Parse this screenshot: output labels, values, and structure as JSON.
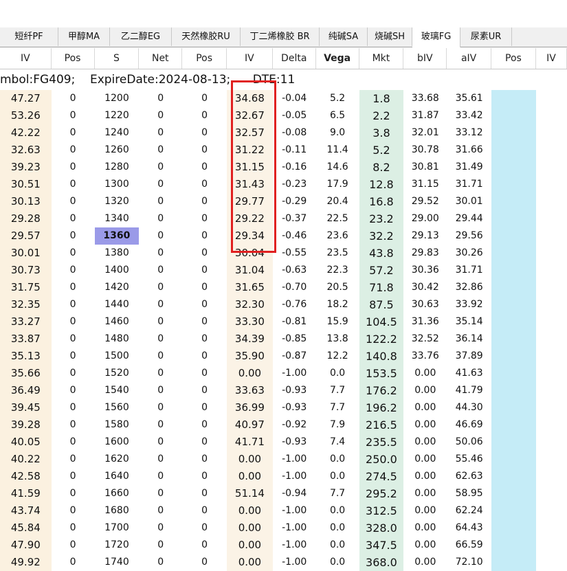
{
  "tabs": [
    {
      "label": "短纤PF",
      "active": false
    },
    {
      "label": "甲醇MA",
      "active": false
    },
    {
      "label": "乙二醇EG",
      "active": false
    },
    {
      "label": "天然橡胶RU",
      "active": false
    },
    {
      "label": "丁二烯橡胶 BR",
      "active": false
    },
    {
      "label": "纯碱SA",
      "active": false
    },
    {
      "label": "烧碱SH",
      "active": false
    },
    {
      "label": "玻璃FG",
      "active": true
    },
    {
      "label": "尿素UR",
      "active": false
    }
  ],
  "columns": [
    "IV",
    "Pos",
    "S",
    "Net",
    "Pos",
    "IV",
    "Delta",
    "Vega",
    "Mkt",
    "bIV",
    "aIV",
    "Pos",
    "IV"
  ],
  "info": {
    "symbol": "mbol:FG409;",
    "expire": "ExpireDate:2024-08-13;",
    "dte": "DTE:11"
  },
  "atm_strike": "1360",
  "highlight_color": "#e02020",
  "rows": [
    [
      "47.27",
      "0",
      "1200",
      "0",
      "0",
      "34.68",
      "-0.04",
      "5.2",
      "1.8",
      "33.68",
      "35.61"
    ],
    [
      "53.26",
      "0",
      "1220",
      "0",
      "0",
      "32.67",
      "-0.05",
      "6.5",
      "2.2",
      "31.87",
      "33.42"
    ],
    [
      "42.22",
      "0",
      "1240",
      "0",
      "0",
      "32.57",
      "-0.08",
      "9.0",
      "3.8",
      "32.01",
      "33.12"
    ],
    [
      "32.63",
      "0",
      "1260",
      "0",
      "0",
      "31.22",
      "-0.11",
      "11.4",
      "5.2",
      "30.78",
      "31.66"
    ],
    [
      "39.23",
      "0",
      "1280",
      "0",
      "0",
      "31.15",
      "-0.16",
      "14.6",
      "8.2",
      "30.81",
      "31.49"
    ],
    [
      "30.51",
      "0",
      "1300",
      "0",
      "0",
      "31.43",
      "-0.23",
      "17.9",
      "12.8",
      "31.15",
      "31.71"
    ],
    [
      "30.13",
      "0",
      "1320",
      "0",
      "0",
      "29.77",
      "-0.29",
      "20.4",
      "16.8",
      "29.52",
      "30.01"
    ],
    [
      "29.28",
      "0",
      "1340",
      "0",
      "0",
      "29.22",
      "-0.37",
      "22.5",
      "23.2",
      "29.00",
      "29.44"
    ],
    [
      "29.57",
      "0",
      "1360",
      "0",
      "0",
      "29.34",
      "-0.46",
      "23.6",
      "32.2",
      "29.13",
      "29.56"
    ],
    [
      "30.01",
      "0",
      "1380",
      "0",
      "0",
      "30.04",
      "-0.55",
      "23.5",
      "43.8",
      "29.83",
      "30.26"
    ],
    [
      "30.73",
      "0",
      "1400",
      "0",
      "0",
      "31.04",
      "-0.63",
      "22.3",
      "57.2",
      "30.36",
      "31.71"
    ],
    [
      "31.75",
      "0",
      "1420",
      "0",
      "0",
      "31.65",
      "-0.70",
      "20.5",
      "71.8",
      "30.42",
      "32.86"
    ],
    [
      "32.35",
      "0",
      "1440",
      "0",
      "0",
      "32.30",
      "-0.76",
      "18.2",
      "87.5",
      "30.63",
      "33.92"
    ],
    [
      "33.27",
      "0",
      "1460",
      "0",
      "0",
      "33.30",
      "-0.81",
      "15.9",
      "104.5",
      "31.36",
      "35.14"
    ],
    [
      "33.87",
      "0",
      "1480",
      "0",
      "0",
      "34.39",
      "-0.85",
      "13.8",
      "122.2",
      "32.52",
      "36.14"
    ],
    [
      "35.13",
      "0",
      "1500",
      "0",
      "0",
      "35.90",
      "-0.87",
      "12.2",
      "140.8",
      "33.76",
      "37.89"
    ],
    [
      "35.66",
      "0",
      "1520",
      "0",
      "0",
      "0.00",
      "-1.00",
      "0.0",
      "153.5",
      "0.00",
      "41.63"
    ],
    [
      "36.49",
      "0",
      "1540",
      "0",
      "0",
      "33.63",
      "-0.93",
      "7.7",
      "176.2",
      "0.00",
      "41.79"
    ],
    [
      "39.45",
      "0",
      "1560",
      "0",
      "0",
      "36.99",
      "-0.93",
      "7.7",
      "196.2",
      "0.00",
      "44.30"
    ],
    [
      "39.28",
      "0",
      "1580",
      "0",
      "0",
      "40.97",
      "-0.92",
      "7.9",
      "216.5",
      "0.00",
      "46.69"
    ],
    [
      "40.05",
      "0",
      "1600",
      "0",
      "0",
      "41.71",
      "-0.93",
      "7.4",
      "235.5",
      "0.00",
      "50.06"
    ],
    [
      "40.22",
      "0",
      "1620",
      "0",
      "0",
      "0.00",
      "-1.00",
      "0.0",
      "250.0",
      "0.00",
      "55.46"
    ],
    [
      "42.58",
      "0",
      "1640",
      "0",
      "0",
      "0.00",
      "-1.00",
      "0.0",
      "274.5",
      "0.00",
      "62.63"
    ],
    [
      "41.59",
      "0",
      "1660",
      "0",
      "0",
      "51.14",
      "-0.94",
      "7.7",
      "295.2",
      "0.00",
      "58.95"
    ],
    [
      "43.74",
      "0",
      "1680",
      "0",
      "0",
      "0.00",
      "-1.00",
      "0.0",
      "312.5",
      "0.00",
      "62.24"
    ],
    [
      "45.84",
      "0",
      "1700",
      "0",
      "0",
      "0.00",
      "-1.00",
      "0.0",
      "328.0",
      "0.00",
      "64.43"
    ],
    [
      "47.90",
      "0",
      "1720",
      "0",
      "0",
      "0.00",
      "-1.00",
      "0.0",
      "347.5",
      "0.00",
      "66.59"
    ],
    [
      "49.92",
      "0",
      "1740",
      "0",
      "0",
      "0.00",
      "-1.00",
      "0.0",
      "368.0",
      "0.00",
      "72.10"
    ]
  ]
}
